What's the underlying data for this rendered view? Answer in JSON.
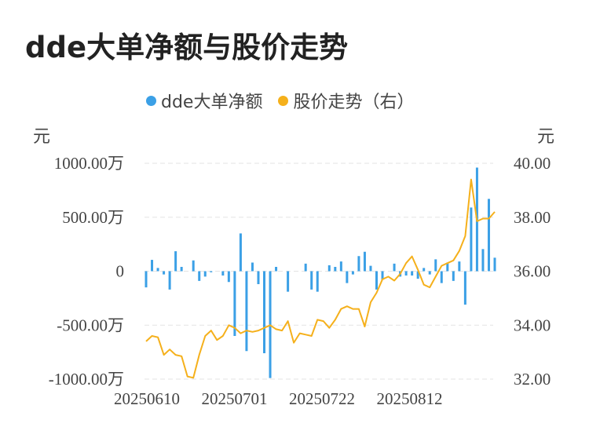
{
  "title": "dde大单净额与股价走势",
  "legend": {
    "series1": "dde大单净额",
    "series2": "股价走势（右）"
  },
  "units": {
    "left": "元",
    "right": "元"
  },
  "colors": {
    "bars": "#3ba0e6",
    "line": "#f5b01b",
    "grid": "#e3e3e3"
  },
  "chart_data": {
    "type": "bar+line",
    "title": "dde大单净额与股价走势",
    "ylabel_left": "元",
    "ylabel_right": "元",
    "ylim_left": [
      -1000,
      1000
    ],
    "ylim_right": [
      32,
      40
    ],
    "y_ticks_left": [
      "1000.00万",
      "500.00万",
      "0",
      "-500.00万",
      "-1000.00万"
    ],
    "y_ticks_right": [
      "40.00",
      "38.00",
      "36.00",
      "34.00",
      "32.00"
    ],
    "x_ticks": [
      "20250610",
      "20250701",
      "20250722",
      "20250812"
    ],
    "series": [
      {
        "name": "dde大单净额",
        "type": "bar",
        "unit": "万元",
        "values": [
          -150,
          105,
          30,
          -30,
          -170,
          185,
          40,
          0,
          100,
          -90,
          -50,
          -10,
          0,
          -40,
          -100,
          -600,
          350,
          -740,
          80,
          -120,
          -760,
          -990,
          40,
          0,
          -190,
          0,
          0,
          70,
          -170,
          -190,
          0,
          55,
          40,
          90,
          -110,
          -30,
          140,
          180,
          50,
          -170,
          -80,
          0,
          70,
          -50,
          -40,
          -40,
          -70,
          30,
          -30,
          110,
          -110,
          80,
          -90,
          90,
          -310,
          590,
          960,
          205,
          670,
          125
        ]
      },
      {
        "name": "股价走势（右）",
        "type": "line",
        "values": [
          33.4,
          33.6,
          33.55,
          32.9,
          33.1,
          32.9,
          32.85,
          32.1,
          32.05,
          32.9,
          33.6,
          33.8,
          33.45,
          33.6,
          34.0,
          33.9,
          33.7,
          33.8,
          33.75,
          33.8,
          33.9,
          34.0,
          33.85,
          33.8,
          34.15,
          33.35,
          33.7,
          33.65,
          33.6,
          34.2,
          34.15,
          33.9,
          34.2,
          34.6,
          34.7,
          34.6,
          34.6,
          33.95,
          34.85,
          35.2,
          35.7,
          35.8,
          35.65,
          35.9,
          36.3,
          36.55,
          36.05,
          35.5,
          35.4,
          35.8,
          36.2,
          36.3,
          36.4,
          36.75,
          37.3,
          39.4,
          37.85,
          37.95,
          37.95,
          38.2
        ]
      }
    ]
  }
}
